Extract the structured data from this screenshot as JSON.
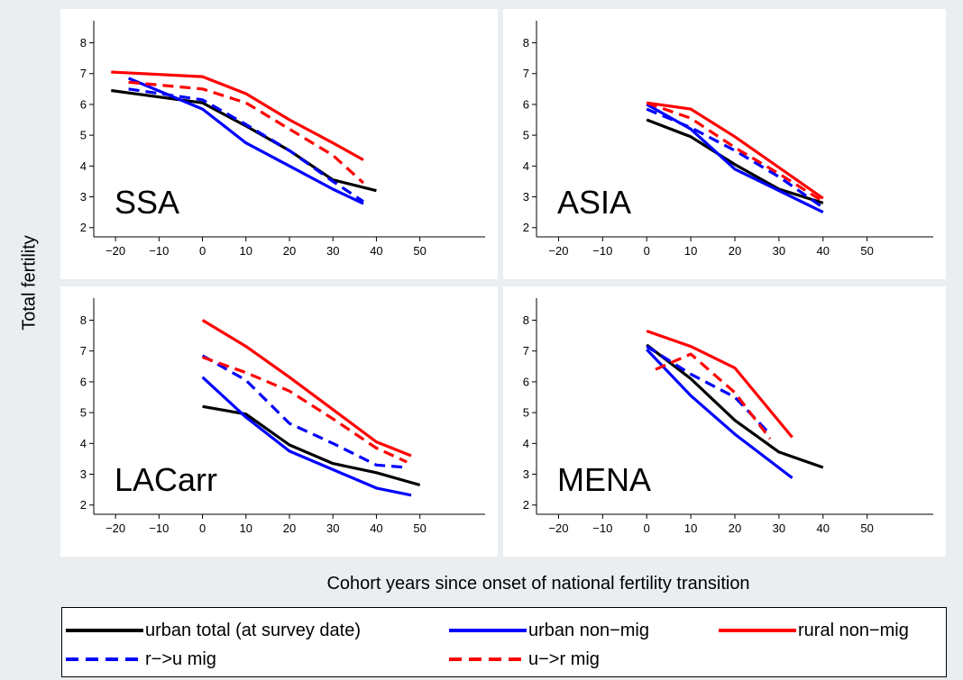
{
  "figure": {
    "ylabel": "Total fertility",
    "xlabel": "Cohort years since onset of national fertility transition"
  },
  "legend": {
    "entries": [
      {
        "label": "urban total (at survey date)",
        "color": "#000000",
        "dash": "solid"
      },
      {
        "label": "urban non−mig",
        "color": "#0000ff",
        "dash": "solid"
      },
      {
        "label": "rural non−mig",
        "color": "#ff0000",
        "dash": "solid"
      },
      {
        "label": "r−>u mig",
        "color": "#0000ff",
        "dash": "dashed"
      },
      {
        "label": "u−>r mig",
        "color": "#ff0000",
        "dash": "dashed"
      }
    ]
  },
  "chart_data": [
    {
      "type": "line",
      "title": "SSA",
      "xlim": [
        -25,
        65
      ],
      "ylim": [
        1.7,
        8.6
      ],
      "xticks": [
        -20,
        -10,
        0,
        10,
        20,
        30,
        40,
        50
      ],
      "yticks": [
        2,
        3,
        4,
        5,
        6,
        7,
        8
      ],
      "series": [
        {
          "name": "urban total (at survey date)",
          "color": "#000000",
          "dash": "solid",
          "x": [
            -21,
            0,
            10,
            20,
            30,
            40
          ],
          "y": [
            6.45,
            6.05,
            5.3,
            4.5,
            3.55,
            3.2
          ]
        },
        {
          "name": "urban non−mig",
          "color": "#0000ff",
          "dash": "solid",
          "x": [
            -17,
            0,
            10,
            20,
            30,
            37
          ],
          "y": [
            6.85,
            5.85,
            4.75,
            4.0,
            3.25,
            2.78
          ]
        },
        {
          "name": "rural non−mig",
          "color": "#ff0000",
          "dash": "solid",
          "x": [
            -21,
            0,
            10,
            20,
            30,
            37
          ],
          "y": [
            7.05,
            6.9,
            6.35,
            5.5,
            4.75,
            4.2
          ]
        },
        {
          "name": "r−>u mig",
          "color": "#0000ff",
          "dash": "dashed",
          "x": [
            -17,
            0,
            10,
            20,
            30,
            37
          ],
          "y": [
            6.5,
            6.15,
            5.35,
            4.5,
            3.5,
            2.85
          ]
        },
        {
          "name": "u−>r mig",
          "color": "#ff0000",
          "dash": "dashed",
          "x": [
            -17,
            0,
            10,
            20,
            30,
            37
          ],
          "y": [
            6.72,
            6.5,
            6.05,
            5.2,
            4.35,
            3.45
          ]
        }
      ]
    },
    {
      "type": "line",
      "title": "ASIA",
      "xlim": [
        -25,
        65
      ],
      "ylim": [
        1.7,
        8.6
      ],
      "xticks": [
        -20,
        -10,
        0,
        10,
        20,
        30,
        40,
        50
      ],
      "yticks": [
        2,
        3,
        4,
        5,
        6,
        7,
        8
      ],
      "series": [
        {
          "name": "urban total (at survey date)",
          "color": "#000000",
          "dash": "solid",
          "x": [
            0,
            10,
            20,
            30,
            40
          ],
          "y": [
            5.5,
            4.95,
            4.05,
            3.25,
            2.8
          ]
        },
        {
          "name": "urban non−mig",
          "color": "#0000ff",
          "dash": "solid",
          "x": [
            0,
            10,
            20,
            30,
            40
          ],
          "y": [
            6.0,
            5.2,
            3.9,
            3.2,
            2.5
          ]
        },
        {
          "name": "rural non−mig",
          "color": "#ff0000",
          "dash": "solid",
          "x": [
            0,
            10,
            20,
            30,
            40
          ],
          "y": [
            6.05,
            5.85,
            4.95,
            3.95,
            2.95
          ]
        },
        {
          "name": "r−>u mig",
          "color": "#0000ff",
          "dash": "dashed",
          "x": [
            0,
            10,
            20,
            30,
            40
          ],
          "y": [
            5.85,
            5.25,
            4.5,
            3.65,
            2.65
          ]
        },
        {
          "name": "u−>r mig",
          "color": "#ff0000",
          "dash": "dashed",
          "x": [
            0,
            10,
            20,
            30,
            40
          ],
          "y": [
            6.05,
            5.55,
            4.6,
            3.75,
            2.85
          ]
        }
      ]
    },
    {
      "type": "line",
      "title": "LACarr",
      "xlim": [
        -25,
        65
      ],
      "ylim": [
        1.7,
        8.6
      ],
      "xticks": [
        -20,
        -10,
        0,
        10,
        20,
        30,
        40,
        50
      ],
      "yticks": [
        2,
        3,
        4,
        5,
        6,
        7,
        8
      ],
      "series": [
        {
          "name": "urban total (at survey date)",
          "color": "#000000",
          "dash": "solid",
          "x": [
            0,
            10,
            20,
            30,
            40,
            50
          ],
          "y": [
            5.2,
            4.95,
            3.95,
            3.35,
            3.05,
            2.65
          ]
        },
        {
          "name": "urban non−mig",
          "color": "#0000ff",
          "dash": "solid",
          "x": [
            0,
            10,
            20,
            30,
            40,
            48
          ],
          "y": [
            6.15,
            4.85,
            3.75,
            3.15,
            2.55,
            2.32
          ]
        },
        {
          "name": "rural non−mig",
          "color": "#ff0000",
          "dash": "solid",
          "x": [
            0,
            10,
            20,
            30,
            40,
            48
          ],
          "y": [
            8.0,
            7.15,
            6.15,
            5.1,
            4.05,
            3.6
          ]
        },
        {
          "name": "r−>u mig",
          "color": "#0000ff",
          "dash": "dashed",
          "x": [
            0,
            10,
            20,
            30,
            40,
            47
          ],
          "y": [
            6.85,
            6.05,
            4.65,
            4.0,
            3.3,
            3.22
          ]
        },
        {
          "name": "u−>r mig",
          "color": "#ff0000",
          "dash": "dashed",
          "x": [
            0,
            10,
            20,
            30,
            40,
            47
          ],
          "y": [
            6.8,
            6.3,
            5.7,
            4.8,
            3.85,
            3.4
          ]
        }
      ]
    },
    {
      "type": "line",
      "title": "MENA",
      "xlim": [
        -25,
        65
      ],
      "ylim": [
        1.7,
        8.6
      ],
      "xticks": [
        -20,
        -10,
        0,
        10,
        20,
        30,
        40,
        50
      ],
      "yticks": [
        2,
        3,
        4,
        5,
        6,
        7,
        8
      ],
      "series": [
        {
          "name": "urban total (at survey date)",
          "color": "#000000",
          "dash": "solid",
          "x": [
            0,
            10,
            20,
            30,
            40
          ],
          "y": [
            7.2,
            6.1,
            4.75,
            3.72,
            3.22
          ]
        },
        {
          "name": "urban non−mig",
          "color": "#0000ff",
          "dash": "solid",
          "x": [
            0,
            10,
            20,
            33
          ],
          "y": [
            7.05,
            5.55,
            4.3,
            2.88
          ]
        },
        {
          "name": "rural non−mig",
          "color": "#ff0000",
          "dash": "solid",
          "x": [
            0,
            10,
            20,
            33
          ],
          "y": [
            7.65,
            7.15,
            6.45,
            4.2
          ]
        },
        {
          "name": "r−>u mig",
          "color": "#0000ff",
          "dash": "dashed",
          "x": [
            0,
            10,
            20,
            28
          ],
          "y": [
            7.15,
            6.25,
            5.5,
            4.3
          ]
        },
        {
          "name": "u−>r mig",
          "color": "#ff0000",
          "dash": "dashed",
          "x": [
            2,
            10,
            20,
            28
          ],
          "y": [
            6.4,
            6.9,
            5.65,
            4.15
          ]
        }
      ]
    }
  ]
}
